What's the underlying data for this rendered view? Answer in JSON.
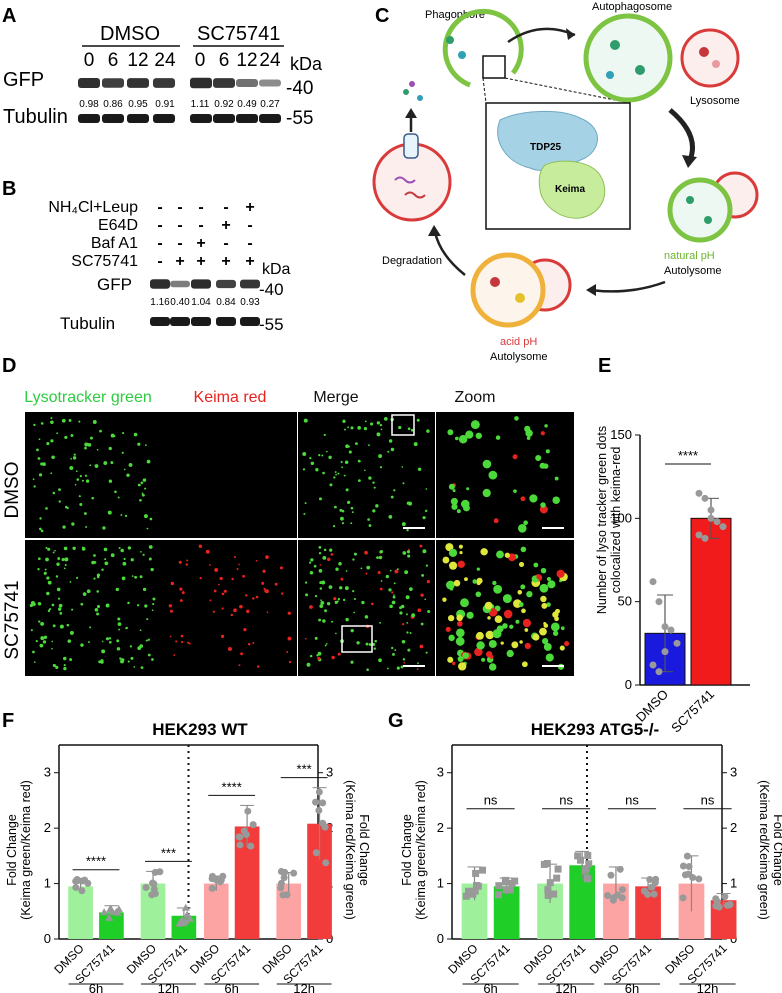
{
  "panel_labels": {
    "A": "A",
    "B": "B",
    "C": "C",
    "D": "D",
    "E": "E",
    "F": "F",
    "G": "G"
  },
  "panelA": {
    "groups": [
      "DMSO",
      "SC75741"
    ],
    "timepoints": [
      "0",
      "6",
      "12",
      "24",
      "0",
      "6",
      "12",
      "24"
    ],
    "kda": "kDa",
    "rows": [
      "GFP",
      "Tubulin"
    ],
    "mw": [
      "-40",
      "-55"
    ],
    "ratios": [
      "0.98",
      "0.86",
      "0.95",
      "0.91",
      "1.11",
      "0.92",
      "0.49",
      "0.27"
    ]
  },
  "panelB": {
    "treatments": [
      {
        "label": "NH₄Cl+Leup",
        "marks": [
          "-",
          "-",
          "-",
          "-",
          "+"
        ]
      },
      {
        "label": "E64D",
        "marks": [
          "-",
          "-",
          "-",
          "+",
          "-"
        ]
      },
      {
        "label": "Baf A1",
        "marks": [
          "-",
          "-",
          "+",
          "-",
          "-"
        ]
      },
      {
        "label": "SC75741",
        "marks": [
          "-",
          "+",
          "+",
          "+",
          "+"
        ]
      }
    ],
    "kda": "kDa",
    "rows": [
      "GFP",
      "Tubulin"
    ],
    "mw": [
      "-40",
      "-55"
    ],
    "ratios": [
      "1.16",
      "0.40",
      "1.04",
      "0.84",
      "0.93"
    ]
  },
  "panelC": {
    "phagophore": "Phagophore",
    "autophagosome": "Autophagosome",
    "lysosome": "Lysosome",
    "degradation": "Degradation",
    "tdp25": "TDP25",
    "keima": "Keima",
    "natural_ph": "natural pH",
    "autolysome1": "Autolysome",
    "acid_ph": "acid pH",
    "autolysome2": "Autolysome"
  },
  "panelD": {
    "columns": [
      "Lysotracker green",
      "Keima red",
      "Merge",
      "Zoom"
    ],
    "column_colors": [
      "#2ecc40",
      "#e8221f",
      "#111111",
      "#111111"
    ],
    "rows": [
      "DMSO",
      "SC75741"
    ]
  },
  "panelE": {
    "ylabel_line1": "Number of lyso tracker green dots",
    "ylabel_line2": "colocalized with keima-red",
    "sig": "****",
    "yticks": [
      "0",
      "50",
      "100",
      "150"
    ]
  },
  "panelF": {
    "title": "HEK293 WT",
    "ylabel_left_1": "Fold Change",
    "ylabel_left_2": "(Keima green/Keima red)",
    "ylabel_right_1": "Fold Change",
    "ylabel_right_2": "(Keima red/Keima green)",
    "sig": [
      "****",
      "***",
      "****",
      "***"
    ],
    "yticks": [
      "0",
      "1",
      "2",
      "3"
    ],
    "xgroups": [
      "6h",
      "12h",
      "6h",
      "12h"
    ]
  },
  "panelG": {
    "title": "HEK293 ATG5-/-",
    "ylabel_left_1": "Fold Change",
    "ylabel_left_2": "(Keima green/Keima red)",
    "ylabel_right_1": "Fold Change",
    "ylabel_right_2": "(Keima red/Keima green)",
    "sig": [
      "ns",
      "ns",
      "ns",
      "ns"
    ],
    "yticks": [
      "0",
      "1",
      "2",
      "3"
    ],
    "xgroups": [
      "6h",
      "12h",
      "6h",
      "12h"
    ]
  },
  "chart_data": [
    {
      "type": "bar",
      "panel": "E",
      "categories": [
        "DMSO",
        "SC75741"
      ],
      "values": [
        31,
        100
      ],
      "errors": [
        23,
        12
      ],
      "colors": [
        "#1a1adf",
        "#f21b1b"
      ],
      "points": [
        [
          62,
          50,
          35,
          33,
          25,
          12,
          8,
          20
        ],
        [
          115,
          112,
          105,
          98,
          95,
          90,
          88,
          100
        ]
      ],
      "ylim": [
        0,
        150
      ],
      "ylabel": "Number of lyso tracker green dots colocalized with keima-red"
    },
    {
      "type": "bar",
      "panel": "F",
      "title": "HEK293 WT",
      "categories": [
        "DMSO",
        "SC75741",
        "DMSO",
        "SC75741",
        "DMSO",
        "SC75741",
        "DMSO",
        "SC75741"
      ],
      "values": [
        0.95,
        0.48,
        1.0,
        0.42,
        1.0,
        2.03,
        1.0,
        2.08
      ],
      "errors": [
        0.12,
        0.12,
        0.22,
        0.14,
        0.13,
        0.38,
        0.2,
        0.65
      ],
      "colors": [
        "#9ef09a",
        "#1fcf28",
        "#9ef09a",
        "#1fcf28",
        "#fca3a3",
        "#f23b3b",
        "#fca3a3",
        "#f23b3b"
      ],
      "groups": [
        "6h",
        "12h",
        "6h",
        "12h"
      ],
      "ylim": [
        0,
        3.5
      ]
    },
    {
      "type": "bar",
      "panel": "G",
      "title": "HEK293 ATG5-/-",
      "categories": [
        "DMSO",
        "SC75741",
        "DMSO",
        "SC75741",
        "DMSO",
        "SC75741",
        "DMSO",
        "SC75741"
      ],
      "values": [
        1.0,
        0.95,
        1.0,
        1.33,
        1.0,
        0.95,
        1.0,
        0.7
      ],
      "errors": [
        0.3,
        0.15,
        0.35,
        0.25,
        0.3,
        0.15,
        0.5,
        0.12
      ],
      "colors": [
        "#9ef09a",
        "#1fcf28",
        "#9ef09a",
        "#1fcf28",
        "#fca3a3",
        "#f23b3b",
        "#fca3a3",
        "#f23b3b"
      ],
      "groups": [
        "6h",
        "12h",
        "6h",
        "12h"
      ],
      "ylim": [
        0,
        3.5
      ]
    }
  ]
}
